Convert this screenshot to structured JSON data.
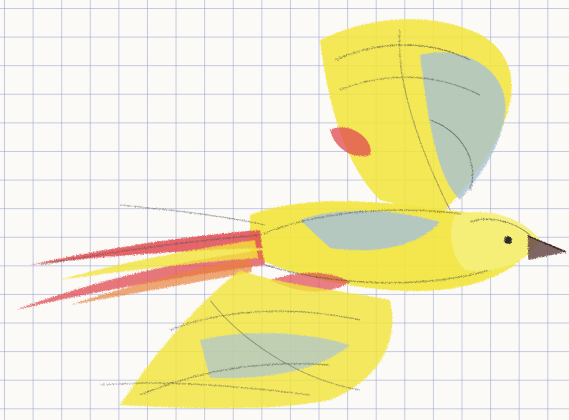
{
  "scene": {
    "subject": "crayon-drawing-of-flying-bird",
    "paper": "graph-paper",
    "colors": {
      "paper": "#fbfaf7",
      "grid": "#96a0cd",
      "yellow": "#f2e53a",
      "yellow_light": "#f6ef7a",
      "blue": "#a9c3d6",
      "red": "#e04a52",
      "orange": "#e8823a",
      "pencil": "#4a4a4a"
    }
  }
}
